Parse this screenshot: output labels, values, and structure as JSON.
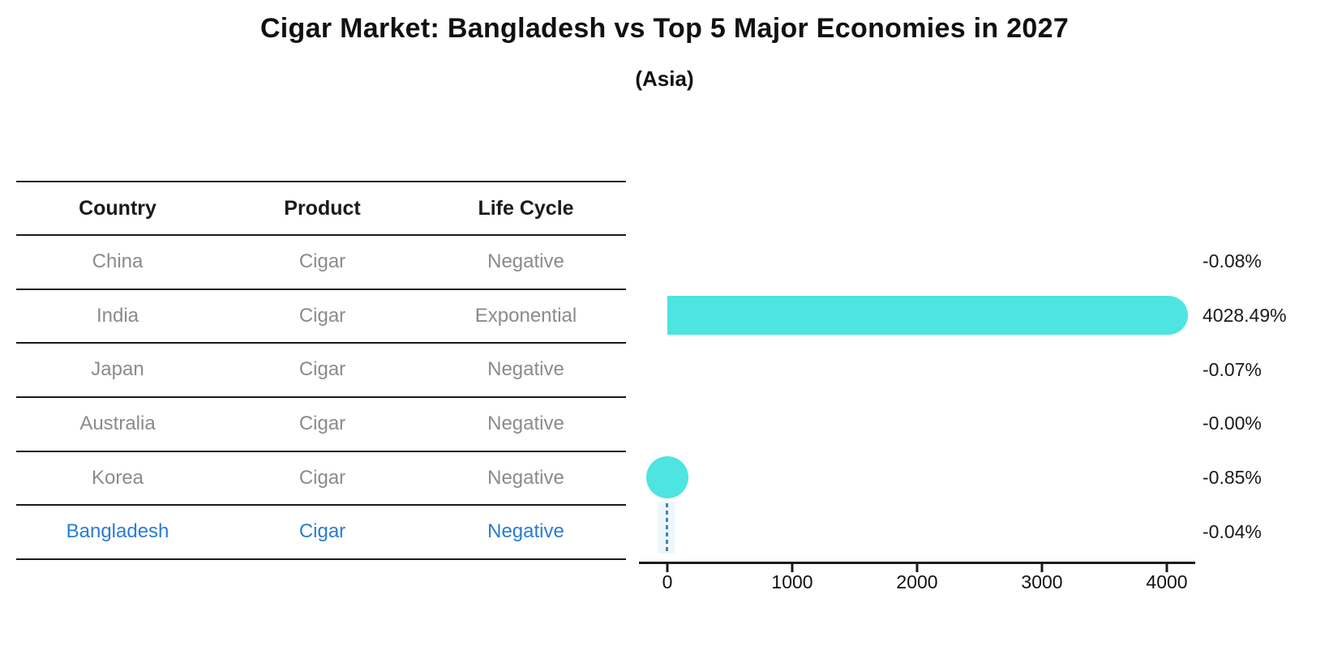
{
  "title": "Cigar Market: Bangladesh vs Top 5 Major Economies in 2027",
  "subtitle": "(Asia)",
  "table": {
    "headers": [
      "Country",
      "Product",
      "Life Cycle"
    ],
    "rows": [
      {
        "country": "China",
        "product": "Cigar",
        "life_cycle": "Negative",
        "highlighted": false
      },
      {
        "country": "India",
        "product": "Cigar",
        "life_cycle": "Exponential",
        "highlighted": false
      },
      {
        "country": "Japan",
        "product": "Cigar",
        "life_cycle": "Negative",
        "highlighted": false
      },
      {
        "country": "Australia",
        "product": "Cigar",
        "life_cycle": "Negative",
        "highlighted": false
      },
      {
        "country": "Korea",
        "product": "Cigar",
        "life_cycle": "Negative",
        "highlighted": false
      },
      {
        "country": "Bangladesh",
        "product": "Cigar",
        "life_cycle": "Negative",
        "highlighted": true
      }
    ]
  },
  "chart_data": {
    "type": "bar",
    "orientation": "horizontal",
    "title": "Cigar Market: Bangladesh vs Top 5 Major Economies in 2027",
    "subtitle": "(Asia)",
    "categories": [
      "China",
      "India",
      "Japan",
      "Australia",
      "Korea",
      "Bangladesh"
    ],
    "values": [
      -0.08,
      4028.49,
      -0.07,
      0.0,
      -0.85,
      -0.04
    ],
    "value_labels": [
      "-0.08%",
      "4028.49%",
      "-0.07%",
      "-0.00%",
      "-0.85%",
      "-0.04%"
    ],
    "unit": "%",
    "x_ticks": [
      "0",
      "1000",
      "2000",
      "3000",
      "4000"
    ],
    "x_tick_values": [
      0,
      1000,
      2000,
      3000,
      4000
    ],
    "xlim": [
      -230,
      4230
    ],
    "grid": false,
    "legend": false,
    "row_glyphs": [
      "none",
      "bar",
      "none",
      "none",
      "circle",
      "dashed-line"
    ],
    "colors": {
      "bar": "#4ee4e1",
      "marker": "#4ee4e1",
      "dashed_line": "#4682b4",
      "highlight_text": "#2a7cd3",
      "row_text": "#8b8b8b",
      "header_text": "#1a1a1a",
      "axis": "#1a1a1a"
    }
  }
}
